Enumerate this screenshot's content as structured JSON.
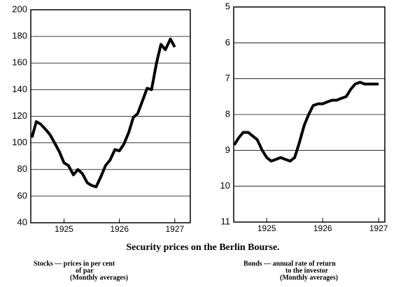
{
  "title": "Security prices on the Berlin Bourse.",
  "chart_data": [
    {
      "type": "line",
      "caption": [
        "Stocks — prices in per cent",
        "of par",
        "(Monthly averages)"
      ],
      "x": [
        1924.42,
        1924.5,
        1924.58,
        1924.67,
        1924.75,
        1924.83,
        1924.92,
        1925,
        1925.08,
        1925.17,
        1925.25,
        1925.33,
        1925.42,
        1925.5,
        1925.58,
        1925.67,
        1925.75,
        1925.83,
        1925.92,
        1926,
        1926.08,
        1926.17,
        1926.25,
        1926.33,
        1926.42,
        1926.5,
        1926.58,
        1926.67,
        1926.75,
        1926.83,
        1926.92,
        1927
      ],
      "series": [
        {
          "color": "#000000",
          "values": [
            104,
            116,
            114,
            110,
            106,
            100,
            93,
            85,
            83,
            76,
            80,
            77,
            70,
            68,
            67,
            75,
            83,
            87,
            95,
            94,
            99,
            108,
            119,
            122,
            132,
            141,
            140,
            160,
            174,
            170,
            178,
            172
          ]
        }
      ],
      "xlim": [
        1924.4,
        1927.28
      ],
      "xticks": [
        1925,
        1926,
        1927
      ],
      "ylim": [
        40,
        200
      ],
      "yticks": [
        40,
        60,
        80,
        100,
        120,
        140,
        160,
        180,
        200
      ],
      "grid": true
    },
    {
      "type": "line",
      "caption": [
        "Bonds — annual rate of return",
        "to the investor",
        "(Monthly averages)"
      ],
      "x": [
        1924.42,
        1924.5,
        1924.58,
        1924.67,
        1924.75,
        1924.83,
        1924.92,
        1925,
        1925.08,
        1925.17,
        1925.25,
        1925.33,
        1925.42,
        1925.5,
        1925.58,
        1925.67,
        1925.75,
        1925.83,
        1925.92,
        1926,
        1926.08,
        1926.17,
        1926.25,
        1926.33,
        1926.42,
        1926.5,
        1926.58,
        1926.67,
        1926.75,
        1926.83,
        1926.92,
        1927
      ],
      "series": [
        {
          "color": "#000000",
          "values": [
            8.85,
            8.65,
            8.5,
            8.5,
            8.6,
            8.7,
            9.0,
            9.2,
            9.3,
            9.25,
            9.2,
            9.25,
            9.3,
            9.2,
            8.8,
            8.3,
            8.0,
            7.75,
            7.7,
            7.7,
            7.65,
            7.6,
            7.6,
            7.55,
            7.5,
            7.3,
            7.15,
            7.1,
            7.15,
            7.15,
            7.15,
            7.15
          ]
        }
      ],
      "xlim": [
        1924.41,
        1927.11
      ],
      "xticks": [
        1925,
        1926,
        1927
      ],
      "ylim": [
        11,
        5
      ],
      "yticks": [
        5,
        6,
        7,
        8,
        9,
        10,
        11
      ],
      "grid": true
    }
  ]
}
